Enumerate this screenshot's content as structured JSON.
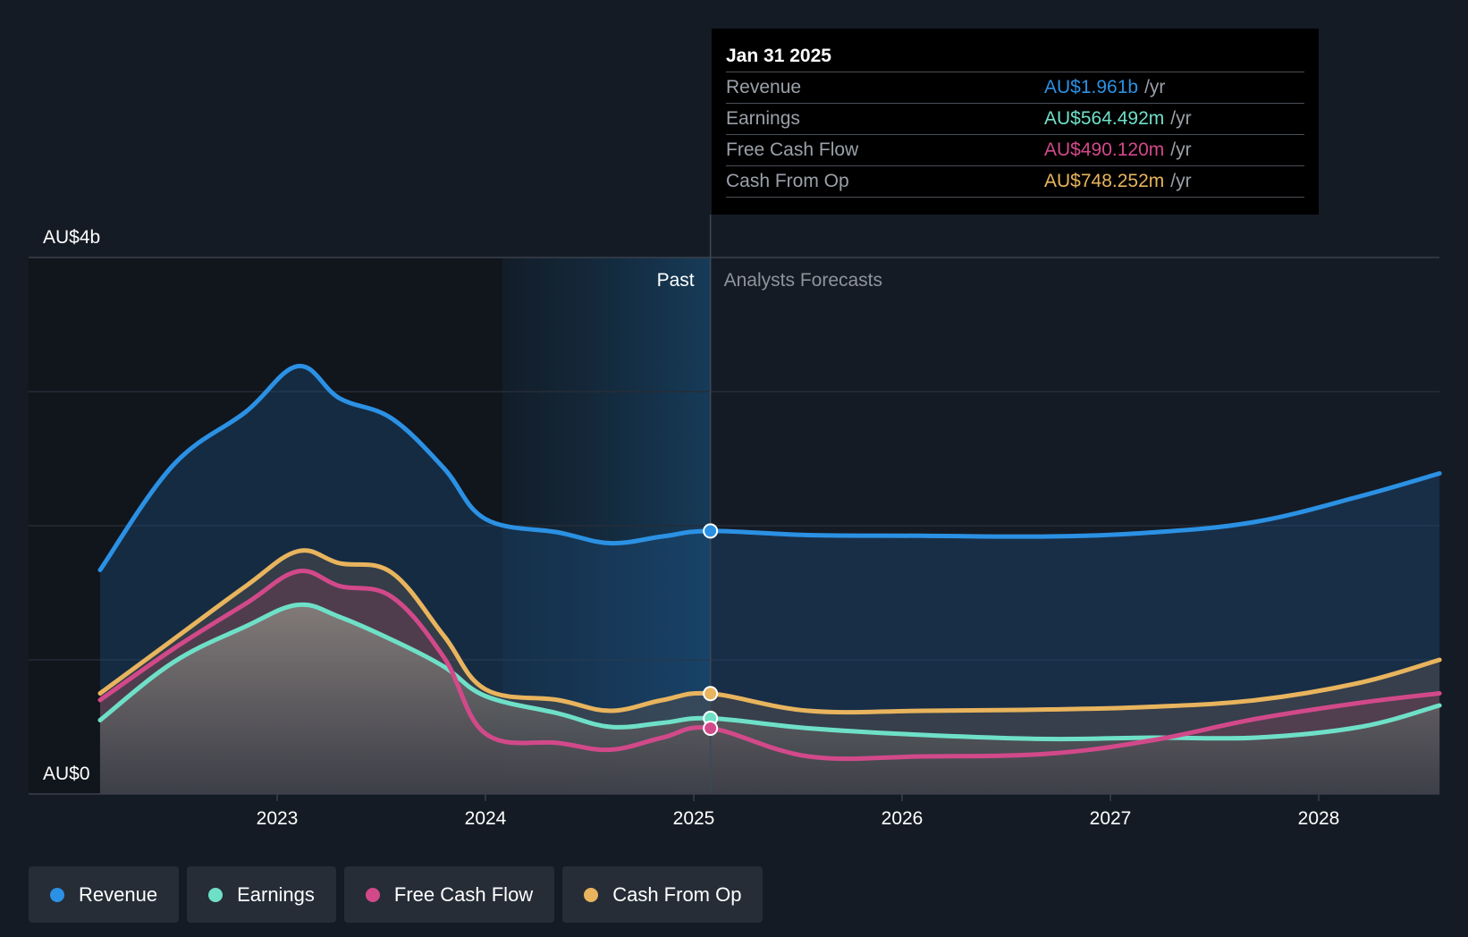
{
  "chart_data": {
    "type": "area",
    "x": [
      2022.15,
      2022.5,
      2022.85,
      2023.1,
      2023.3,
      2023.55,
      2023.8,
      2024.0,
      2024.35,
      2024.6,
      2024.85,
      2025.08,
      2025.55,
      2026.1,
      2026.7,
      2027.2,
      2027.7,
      2028.2,
      2028.58
    ],
    "series": [
      {
        "name": "Revenue",
        "color": "#2b91e4",
        "values": [
          1.67,
          2.45,
          2.85,
          3.19,
          2.95,
          2.8,
          2.43,
          2.05,
          1.95,
          1.87,
          1.92,
          1.961,
          1.93,
          1.925,
          1.92,
          1.95,
          2.03,
          2.22,
          2.39
        ]
      },
      {
        "name": "Earnings",
        "color": "#6fe0c8",
        "values": [
          0.55,
          0.98,
          1.25,
          1.41,
          1.32,
          1.15,
          0.95,
          0.73,
          0.6,
          0.5,
          0.53,
          0.564,
          0.49,
          0.44,
          0.41,
          0.42,
          0.42,
          0.5,
          0.66
        ]
      },
      {
        "name": "Free Cash Flow",
        "color": "#d2498a",
        "values": [
          0.7,
          1.08,
          1.42,
          1.66,
          1.55,
          1.47,
          1.02,
          0.45,
          0.38,
          0.33,
          0.42,
          0.49,
          0.28,
          0.28,
          0.3,
          0.4,
          0.56,
          0.68,
          0.75
        ]
      },
      {
        "name": "Cash From Op",
        "color": "#e8b45d",
        "values": [
          0.75,
          1.15,
          1.55,
          1.81,
          1.72,
          1.65,
          1.18,
          0.78,
          0.7,
          0.62,
          0.7,
          0.748,
          0.62,
          0.62,
          0.63,
          0.65,
          0.7,
          0.83,
          1.0
        ]
      }
    ],
    "x_ticks": [
      "2023",
      "2024",
      "2025",
      "2026",
      "2027",
      "2028"
    ],
    "y_labels": {
      "top": "AU$4b",
      "bottom": "AU$0"
    },
    "ylim": [
      0,
      4
    ],
    "xlim": [
      2022.0,
      2028.58
    ],
    "past_label": "Past",
    "forecast_label": "Analysts Forecasts",
    "past_start": 2024.08,
    "divider_x": 2025.08,
    "grid": true
  },
  "tooltip": {
    "date": "Jan 31 2025",
    "rows": [
      {
        "label": "Revenue",
        "value": "AU$1.961b",
        "unit": "/yr",
        "color": "#2b91e4"
      },
      {
        "label": "Earnings",
        "value": "AU$564.492m",
        "unit": "/yr",
        "color": "#6fe0c8"
      },
      {
        "label": "Free Cash Flow",
        "value": "AU$490.120m",
        "unit": "/yr",
        "color": "#d2498a"
      },
      {
        "label": "Cash From Op",
        "value": "AU$748.252m",
        "unit": "/yr",
        "color": "#e8b45d"
      }
    ]
  },
  "legend": [
    {
      "label": "Revenue",
      "color": "#2b91e4"
    },
    {
      "label": "Earnings",
      "color": "#6fe0c8"
    },
    {
      "label": "Free Cash Flow",
      "color": "#d2498a"
    },
    {
      "label": "Cash From Op",
      "color": "#e8b45d"
    }
  ]
}
